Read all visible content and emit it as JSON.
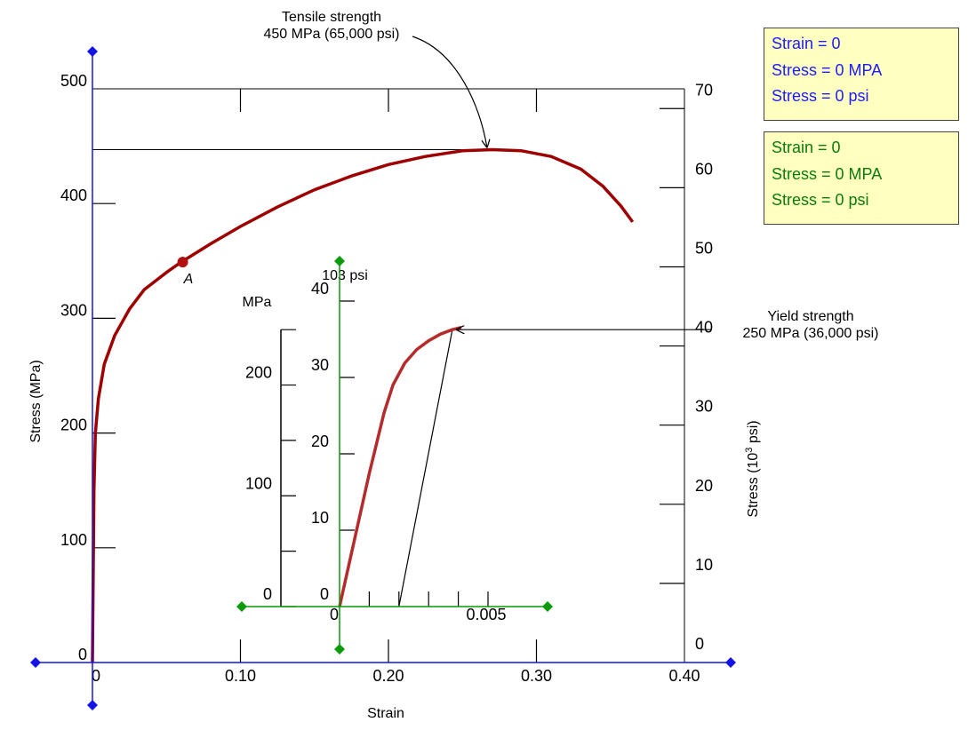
{
  "chart_data": {
    "type": "line",
    "title": "",
    "main": {
      "xlabel": "Strain",
      "ylabel_left": "Stress (MPa)",
      "ylabel_right_prefix": "Stress (10",
      "ylabel_right_exp": "3",
      "ylabel_right_suffix": " psi)",
      "xlim": [
        0,
        0.4
      ],
      "ylim_mpa": [
        0,
        500
      ],
      "ylim_ksi": [
        0,
        72.5
      ],
      "x_ticks": [
        {
          "v": 0,
          "label": "0"
        },
        {
          "v": 0.1,
          "label": "0.10"
        },
        {
          "v": 0.2,
          "label": "0.20"
        },
        {
          "v": 0.3,
          "label": "0.30"
        },
        {
          "v": 0.4,
          "label": "0.40"
        }
      ],
      "y_ticks_mpa": [
        {
          "v": 0,
          "label": "0"
        },
        {
          "v": 100,
          "label": "100"
        },
        {
          "v": 200,
          "label": "200"
        },
        {
          "v": 300,
          "label": "300"
        },
        {
          "v": 400,
          "label": "400"
        },
        {
          "v": 500,
          "label": "500"
        }
      ],
      "y_ticks_ksi": [
        {
          "v": 0,
          "label": "0"
        },
        {
          "v": 10,
          "label": "10"
        },
        {
          "v": 20,
          "label": "20"
        },
        {
          "v": 30,
          "label": "30"
        },
        {
          "v": 40,
          "label": "40"
        },
        {
          "v": 50,
          "label": "50"
        },
        {
          "v": 60,
          "label": "60"
        },
        {
          "v": 70,
          "label": "70"
        }
      ],
      "curve": {
        "color": "#9e0000",
        "points": [
          [
            0,
            0
          ],
          [
            0.001,
            150
          ],
          [
            0.002,
            200
          ],
          [
            0.004,
            230
          ],
          [
            0.008,
            260
          ],
          [
            0.015,
            285
          ],
          [
            0.025,
            308
          ],
          [
            0.035,
            325
          ],
          [
            0.05,
            340
          ],
          [
            0.06,
            349
          ],
          [
            0.08,
            365
          ],
          [
            0.1,
            380
          ],
          [
            0.125,
            397
          ],
          [
            0.15,
            412
          ],
          [
            0.175,
            424
          ],
          [
            0.2,
            434
          ],
          [
            0.225,
            441
          ],
          [
            0.25,
            446
          ],
          [
            0.27,
            447
          ],
          [
            0.29,
            446
          ],
          [
            0.31,
            441
          ],
          [
            0.33,
            430
          ],
          [
            0.345,
            415
          ],
          [
            0.357,
            398
          ],
          [
            0.365,
            384
          ]
        ]
      },
      "point_a": {
        "label": "A",
        "x": 0.061,
        "y": 349
      }
    },
    "inset": {
      "xlim": [
        0,
        0.007
      ],
      "ylim_ksi": [
        0,
        40
      ],
      "ylim_mpa": [
        0,
        275.8
      ],
      "x_ticks": [
        {
          "v": 0,
          "label": "0"
        },
        {
          "v": 0.001,
          "label": ""
        },
        {
          "v": 0.002,
          "label": ""
        },
        {
          "v": 0.003,
          "label": ""
        },
        {
          "v": 0.004,
          "label": ""
        },
        {
          "v": 0.005,
          "label": "0.005"
        }
      ],
      "y_ticks_ksi": [
        {
          "v": 0,
          "label": "0"
        },
        {
          "v": 10,
          "label": "10"
        },
        {
          "v": 20,
          "label": "20"
        },
        {
          "v": 30,
          "label": "30"
        },
        {
          "v": 40,
          "label": "40"
        }
      ],
      "y_ticks_mpa": [
        {
          "v": 0,
          "label": "0"
        },
        {
          "v": 50,
          "label": ""
        },
        {
          "v": 100,
          "label": "100"
        },
        {
          "v": 150,
          "label": ""
        },
        {
          "v": 200,
          "label": "200"
        },
        {
          "v": 250,
          "label": ""
        }
      ],
      "ylabel_ksi": "103 psi",
      "ylabel_mpa": "MPa",
      "curve": {
        "color": "#b52a2a",
        "points_mpa": [
          [
            0,
            0
          ],
          [
            0.001,
            120
          ],
          [
            0.0015,
            175
          ],
          [
            0.0018,
            200
          ],
          [
            0.0022,
            220
          ],
          [
            0.0026,
            232
          ],
          [
            0.003,
            240
          ],
          [
            0.0034,
            246
          ],
          [
            0.0038,
            250
          ],
          [
            0.0041,
            252
          ]
        ]
      },
      "offset_line": {
        "x0": 0.002,
        "y0": 0,
        "x1": 0.0038,
        "y1": 250
      }
    },
    "annotations": [
      {
        "line1": "Tensile strength",
        "line2": "450 MPa (65,000 psi)"
      },
      {
        "line1": "Yield strength",
        "line2": "250 MPa (36,000 psi)"
      }
    ],
    "grid": false,
    "legend": "none"
  },
  "readouts": {
    "blue": {
      "strain": "Strain = 0",
      "stress_mpa": "Stress = 0 MPA",
      "stress_psi": "Stress = 0 psi",
      "color": "#1c1cff"
    },
    "green": {
      "strain": "Strain = 0",
      "stress_mpa": "Stress = 0 MPA",
      "stress_psi": "Stress = 0 psi",
      "color": "#0d7a0d"
    }
  },
  "colors": {
    "main_axes": "#1414e6",
    "inset_axes": "#0a9a0a",
    "curve": "#9e0000",
    "handle_blue": "#1414e6",
    "handle_green": "#0a9a0a"
  }
}
